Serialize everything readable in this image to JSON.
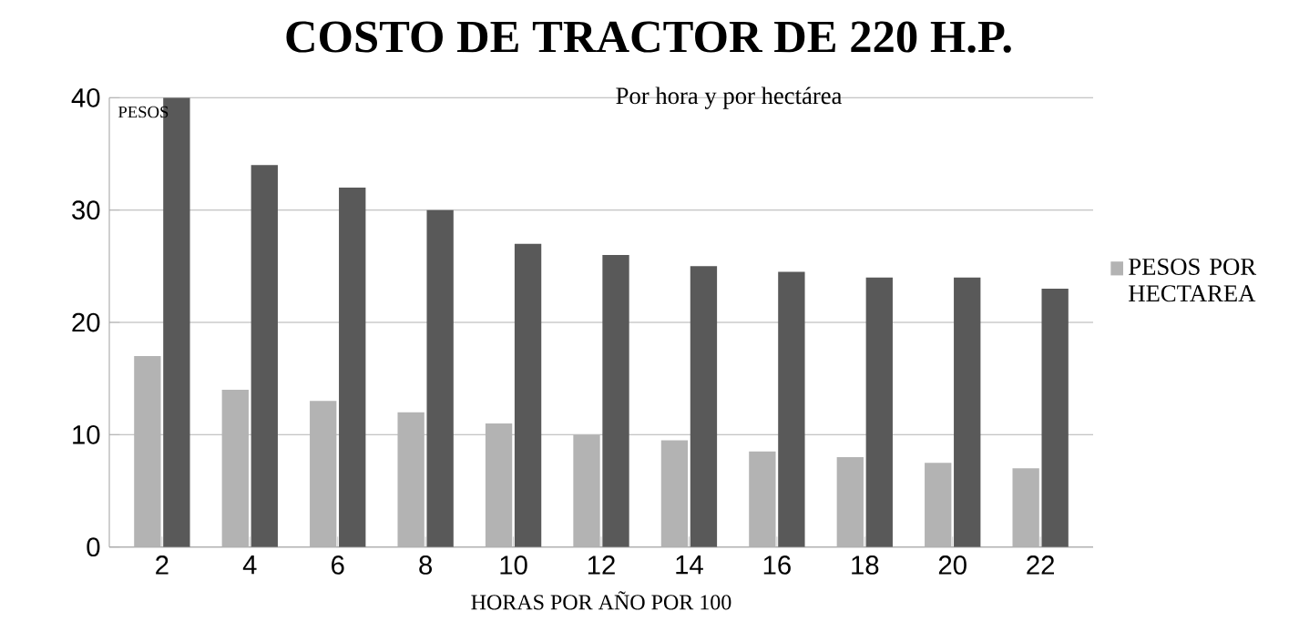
{
  "chart_data": {
    "type": "bar",
    "title": "COSTO DE TRACTOR DE 220 H.P.",
    "subtitle": "Por hora y por hectárea",
    "xlabel": "HORAS POR AÑO POR 100",
    "ylabel": "PESOS",
    "categories": [
      "2",
      "4",
      "6",
      "8",
      "10",
      "12",
      "14",
      "16",
      "18",
      "20",
      "22"
    ],
    "series": [
      {
        "name": "PESOS POR HECTAREA",
        "color": "#b3b3b3",
        "values": [
          17,
          14,
          13,
          12,
          11,
          10,
          9.5,
          8.5,
          8,
          7.5,
          7
        ]
      },
      {
        "color": "#595959",
        "values": [
          40,
          34,
          32,
          30,
          27,
          26,
          25,
          24.5,
          24,
          24,
          23
        ]
      }
    ],
    "ylim": [
      0,
      40
    ],
    "yticks": [
      0,
      10,
      20,
      30,
      40
    ],
    "grid": "y",
    "legend": "right"
  }
}
